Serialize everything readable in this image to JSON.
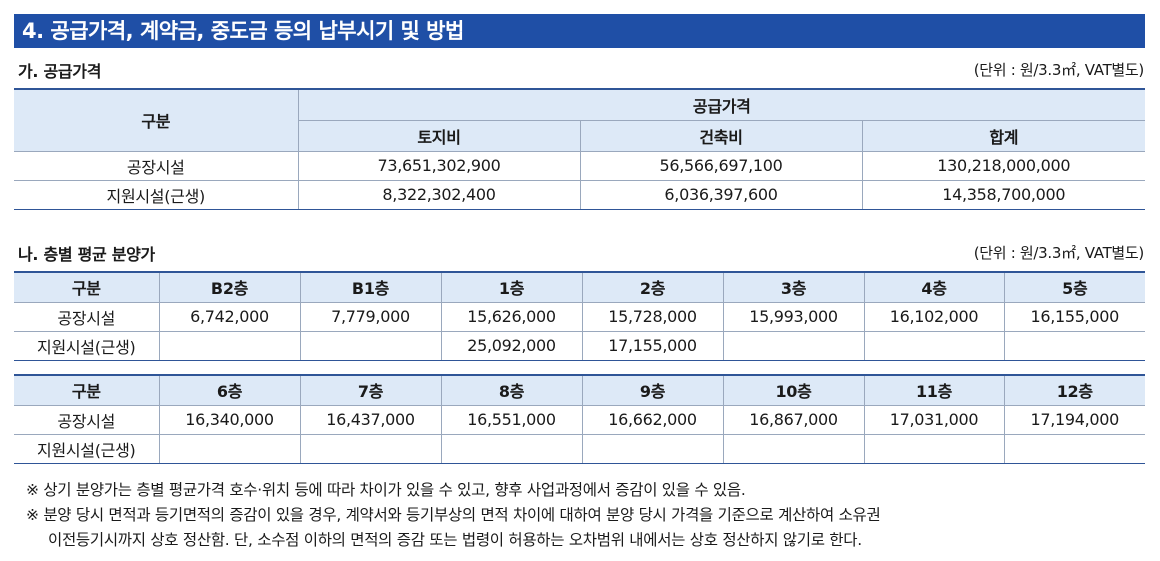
{
  "header": {
    "title": "4. 공급가격, 계약금, 중도금 등의 납부시기 및 방법"
  },
  "section_a": {
    "title": "가. 공급가격",
    "unit": "(단위 : 원/3.3㎡, VAT별도)",
    "headers": {
      "category": "구분",
      "supply_price": "공급가격",
      "land": "토지비",
      "building": "건축비",
      "total": "합계"
    },
    "rows": [
      {
        "label": "공장시설",
        "land": "73,651,302,900",
        "building": "56,566,697,100",
        "total": "130,218,000,000"
      },
      {
        "label": "지원시설(근생)",
        "land": "8,322,302,400",
        "building": "6,036,397,600",
        "total": "14,358,700,000"
      }
    ]
  },
  "section_b": {
    "title": "나. 층별 평균 분양가",
    "unit": "(단위 : 원/3.3㎡, VAT별도)",
    "table1": {
      "headers": [
        "구분",
        "B2층",
        "B1층",
        "1층",
        "2층",
        "3층",
        "4층",
        "5층"
      ],
      "rows": [
        [
          "공장시설",
          "6,742,000",
          "7,779,000",
          "15,626,000",
          "15,728,000",
          "15,993,000",
          "16,102,000",
          "16,155,000"
        ],
        [
          "지원시설(근생)",
          "",
          "",
          "25,092,000",
          "17,155,000",
          "",
          "",
          ""
        ]
      ]
    },
    "table2": {
      "headers": [
        "구분",
        "6층",
        "7층",
        "8층",
        "9층",
        "10층",
        "11층",
        "12층"
      ],
      "rows": [
        [
          "공장시설",
          "16,340,000",
          "16,437,000",
          "16,551,000",
          "16,662,000",
          "16,867,000",
          "17,031,000",
          "17,194,000"
        ],
        [
          "지원시설(근생)",
          "",
          "",
          "",
          "",
          "",
          "",
          ""
        ]
      ]
    }
  },
  "notes": [
    "※ 상기 분양가는 층별 평균가격 호수·위치 등에 따라 차이가 있을 수 있고, 향후 사업과정에서 증감이 있을 수 있음.",
    "※ 분양 당시 면적과 등기면적의 증감이 있을 경우, 계약서와 등기부상의 면적 차이에 대하여 분양 당시 가격을 기준으로 계산하여 소유권",
    "이전등기시까지 상호 정산함. 단, 소수점 이하의 면적의 증감 또는 법령이 허용하는 오차범위 내에서는 상호 정산하지 않기로 한다."
  ]
}
